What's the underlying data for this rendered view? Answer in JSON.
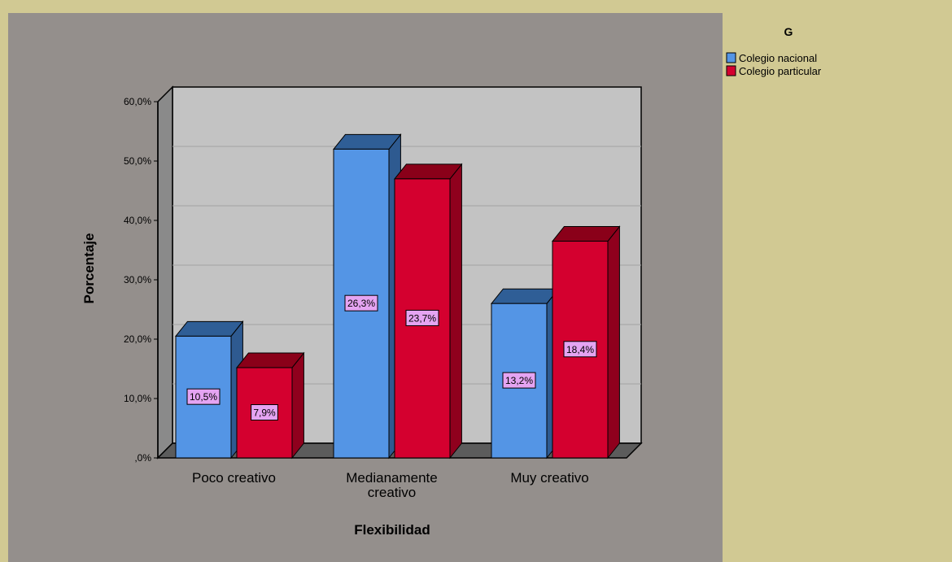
{
  "chart_data": {
    "type": "bar",
    "xlabel": "Flexibilidad",
    "ylabel": "Porcentaje",
    "categories": [
      [
        "Poco creativo"
      ],
      [
        "Medianamente",
        "creativo"
      ],
      [
        "Muy creativo"
      ]
    ],
    "yticks": [
      ",0%",
      "10,0%",
      "20,0%",
      "30,0%",
      "40,0%",
      "50,0%",
      "60,0%"
    ],
    "ylim": [
      0,
      60
    ],
    "legend_title": "G",
    "legend_position": "right",
    "series": [
      {
        "name": "Colegio nacional",
        "values": [
          20.5,
          52.0,
          26.0
        ],
        "labels": [
          "10,5%",
          "26,3%",
          "13,2%"
        ]
      },
      {
        "name": "Colegio particular",
        "values": [
          15.2,
          47.0,
          36.5
        ],
        "labels": [
          "7,9%",
          "23,7%",
          "18,4%"
        ]
      }
    ],
    "colors": {
      "series": [
        {
          "front": "#5495e5",
          "top": "#2f5e96",
          "side": "#2e5a90"
        },
        {
          "front": "#d4002f",
          "top": "#8a0019",
          "side": "#8f001d"
        }
      ],
      "outer_background": "#d1c993",
      "plot_background": "#948f8c",
      "wall": "#c3c3c3",
      "data_label_fill": "#e5a4f2"
    }
  }
}
